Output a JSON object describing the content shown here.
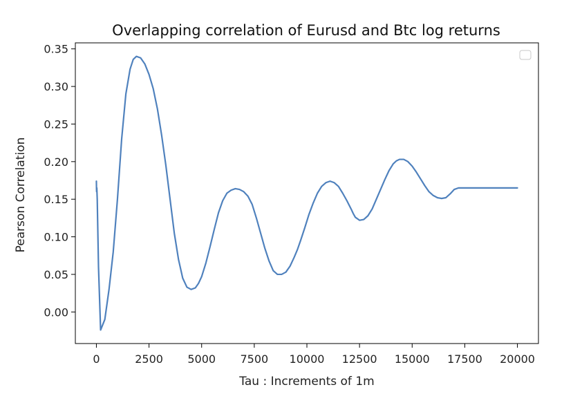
{
  "chart_data": {
    "type": "line",
    "title": "Overlapping correlation of Eurusd and Btc  log returns",
    "xlabel": "Tau : Increments of 1m",
    "ylabel": "Pearson Correlation",
    "xlim": [
      -1000,
      21000
    ],
    "ylim": [
      -0.042,
      0.358
    ],
    "x_ticks": [
      0,
      2500,
      5000,
      7500,
      10000,
      12500,
      15000,
      17500,
      20000
    ],
    "y_ticks": [
      0.0,
      0.05,
      0.1,
      0.15,
      0.2,
      0.25,
      0.3,
      0.35
    ],
    "x_tick_labels": [
      "0",
      "2500",
      "5000",
      "7500",
      "10000",
      "12500",
      "15000",
      "17500",
      "20000"
    ],
    "y_tick_labels": [
      "0.00",
      "0.05",
      "0.10",
      "0.15",
      "0.20",
      "0.25",
      "0.30",
      "0.35"
    ],
    "grid": false,
    "legend": {
      "placement": "top-right",
      "entries": []
    },
    "line_color": "#4f81bd",
    "series": [
      {
        "x": [
          0,
          5,
          10,
          20,
          40,
          60,
          100,
          200,
          400,
          600,
          800,
          1000,
          1200,
          1400,
          1600,
          1750,
          1900,
          2100,
          2300,
          2500,
          2700,
          2900,
          3100,
          3300,
          3500,
          3700,
          3900,
          4100,
          4300,
          4500,
          4700,
          4850,
          5000,
          5200,
          5400,
          5600,
          5800,
          6000,
          6200,
          6400,
          6600,
          6800,
          7000,
          7100,
          7200,
          7400,
          7600,
          7800,
          8000,
          8200,
          8400,
          8600,
          8800,
          9000,
          9200,
          9400,
          9550,
          9700,
          9900,
          10100,
          10300,
          10500,
          10700,
          10900,
          11100,
          11300,
          11500,
          11700,
          11900,
          12100,
          12200,
          12300,
          12500,
          12700,
          12900,
          13100,
          13300,
          13500,
          13700,
          13900,
          14100,
          14250,
          14400,
          14600,
          14800,
          15000,
          15200,
          15400,
          15600,
          15800,
          16000,
          16200,
          16400,
          16600,
          16800,
          16900,
          17000,
          17200,
          17400,
          17600,
          17800,
          18000,
          18200,
          18400,
          18600,
          18800,
          19000,
          19200,
          19400,
          19600,
          19800,
          20000
        ],
        "y": [
          0.174,
          0.164,
          0.16,
          0.165,
          0.15,
          0.12,
          0.06,
          -0.024,
          -0.01,
          0.03,
          0.08,
          0.15,
          0.23,
          0.29,
          0.323,
          0.336,
          0.34,
          0.338,
          0.33,
          0.316,
          0.297,
          0.27,
          0.235,
          0.195,
          0.15,
          0.105,
          0.07,
          0.045,
          0.033,
          0.03,
          0.032,
          0.038,
          0.047,
          0.065,
          0.087,
          0.11,
          0.132,
          0.148,
          0.158,
          0.162,
          0.164,
          0.163,
          0.16,
          0.157,
          0.154,
          0.143,
          0.125,
          0.105,
          0.085,
          0.068,
          0.055,
          0.05,
          0.05,
          0.053,
          0.061,
          0.073,
          0.083,
          0.095,
          0.112,
          0.13,
          0.145,
          0.158,
          0.167,
          0.172,
          0.174,
          0.172,
          0.167,
          0.158,
          0.148,
          0.137,
          0.131,
          0.126,
          0.122,
          0.123,
          0.128,
          0.137,
          0.15,
          0.163,
          0.176,
          0.188,
          0.197,
          0.201,
          0.203,
          0.203,
          0.2,
          0.194,
          0.186,
          0.177,
          0.168,
          0.16,
          0.155,
          0.152,
          0.151,
          0.152,
          0.157,
          0.16,
          0.163,
          0.165,
          0.165,
          0.165,
          0.165,
          0.165,
          0.165,
          0.165,
          0.165,
          0.165,
          0.165,
          0.165,
          0.165,
          0.165,
          0.165,
          0.165
        ]
      }
    ]
  }
}
